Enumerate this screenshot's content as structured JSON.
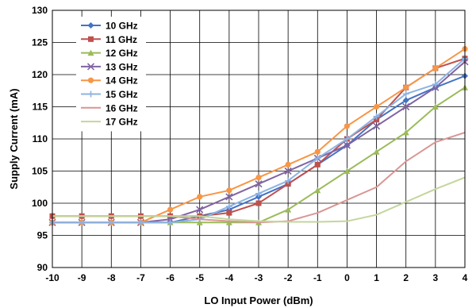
{
  "chart_data": {
    "type": "line",
    "xlabel": "LO Input Power (dBm)",
    "ylabel": "Supply Current  (mA)",
    "xlim": [
      -10,
      4
    ],
    "ylim": [
      90,
      130
    ],
    "x_ticks": [
      "-10",
      "-9",
      "-8",
      "-7",
      "-6",
      "-5",
      "-4",
      "-3",
      "-2",
      "-1",
      "0",
      "1",
      "2",
      "3",
      "4"
    ],
    "y_ticks": [
      "90",
      "95",
      "100",
      "105",
      "110",
      "115",
      "120",
      "125",
      "130"
    ],
    "grid": true,
    "legend_position": "top-left",
    "x": [
      -10,
      -9,
      -8,
      -7,
      -6,
      -5,
      -4,
      -3,
      -2,
      -1,
      0,
      1,
      2,
      3,
      4
    ],
    "series": [
      {
        "name": "10 GHz",
        "color": "#4472c4",
        "marker": "diamond",
        "values": [
          97,
          97,
          97,
          97,
          97,
          98,
          99,
          101,
          103,
          106,
          109,
          113,
          116,
          118,
          119.8
        ]
      },
      {
        "name": "11 GHz",
        "color": "#c0504d",
        "marker": "square",
        "values": [
          98,
          98,
          98,
          98,
          98,
          98,
          98.5,
          100,
          103,
          106,
          110,
          113,
          118,
          121,
          122.5
        ]
      },
      {
        "name": "12 GHz",
        "color": "#9bbb59",
        "marker": "triangle",
        "values": [
          97,
          97,
          97,
          97,
          97,
          97,
          97,
          97,
          99,
          102,
          105,
          108,
          111,
          115,
          118
        ]
      },
      {
        "name": "13 GHz",
        "color": "#8064a2",
        "marker": "x",
        "values": [
          97,
          97,
          97,
          97,
          97.5,
          99,
          101,
          103,
          105,
          107,
          109,
          112,
          115,
          118,
          122
        ]
      },
      {
        "name": "14 GHz",
        "color": "#f79646",
        "marker": "circle",
        "values": [
          97,
          97,
          97,
          97,
          99,
          101,
          102,
          104,
          106,
          108,
          112,
          115,
          118,
          121,
          124
        ]
      },
      {
        "name": "15 GHz",
        "color": "#8db3e2",
        "marker": "plus",
        "values": [
          97,
          97,
          97,
          97,
          97,
          97.5,
          99.5,
          101.5,
          103.5,
          107,
          110,
          113.5,
          117,
          118.5,
          122.5
        ]
      },
      {
        "name": "16 GHz",
        "color": "#d99694",
        "marker": "none",
        "values": [
          98,
          98,
          98,
          98,
          98,
          97.5,
          97.2,
          97,
          97.2,
          98.5,
          100.5,
          102.5,
          106.5,
          109.5,
          111
        ]
      },
      {
        "name": "17 GHz",
        "color": "#c3d69b",
        "marker": "none",
        "values": [
          98,
          98,
          98,
          98,
          98,
          98,
          97.5,
          97.2,
          97.1,
          97.1,
          97.2,
          98.2,
          100.2,
          102.2,
          104
        ]
      }
    ]
  }
}
